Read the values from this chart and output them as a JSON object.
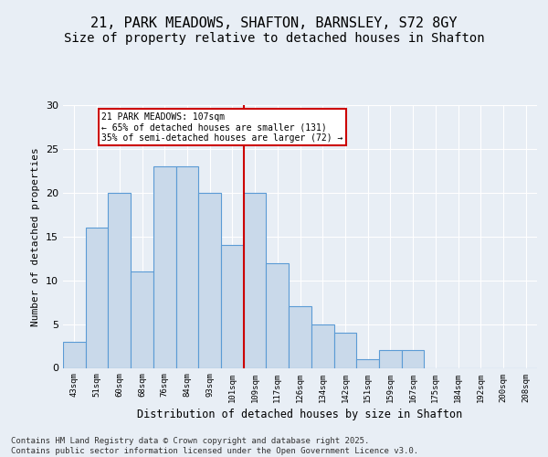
{
  "title1": "21, PARK MEADOWS, SHAFTON, BARNSLEY, S72 8GY",
  "title2": "Size of property relative to detached houses in Shafton",
  "xlabel": "Distribution of detached houses by size in Shafton",
  "ylabel": "Number of detached properties",
  "footer": "Contains HM Land Registry data © Crown copyright and database right 2025.\nContains public sector information licensed under the Open Government Licence v3.0.",
  "bin_labels": [
    "43sqm",
    "51sqm",
    "60sqm",
    "68sqm",
    "76sqm",
    "84sqm",
    "93sqm",
    "101sqm",
    "109sqm",
    "117sqm",
    "126sqm",
    "134sqm",
    "142sqm",
    "151sqm",
    "159sqm",
    "167sqm",
    "175sqm",
    "184sqm",
    "192sqm",
    "200sqm",
    "208sqm"
  ],
  "bar_heights": [
    3,
    16,
    20,
    11,
    23,
    23,
    20,
    14,
    20,
    12,
    7,
    5,
    4,
    1,
    2,
    2,
    0,
    0,
    0,
    0,
    0
  ],
  "bar_color": "#c9d9ea",
  "bar_edge_color": "#5b9bd5",
  "vline_x": 7.5,
  "vline_color": "#cc0000",
  "annotation_text": "21 PARK MEADOWS: 107sqm\n← 65% of detached houses are smaller (131)\n35% of semi-detached houses are larger (72) →",
  "annotation_box_color": "#ffffff",
  "annotation_box_edge": "#cc0000",
  "ylim": [
    0,
    30
  ],
  "yticks": [
    0,
    5,
    10,
    15,
    20,
    25,
    30
  ],
  "bg_color": "#e8eef5",
  "plot_bg_color": "#e8eef5",
  "title1_fontsize": 11,
  "title2_fontsize": 10,
  "xlabel_fontsize": 8.5,
  "ylabel_fontsize": 8,
  "footer_fontsize": 6.5
}
